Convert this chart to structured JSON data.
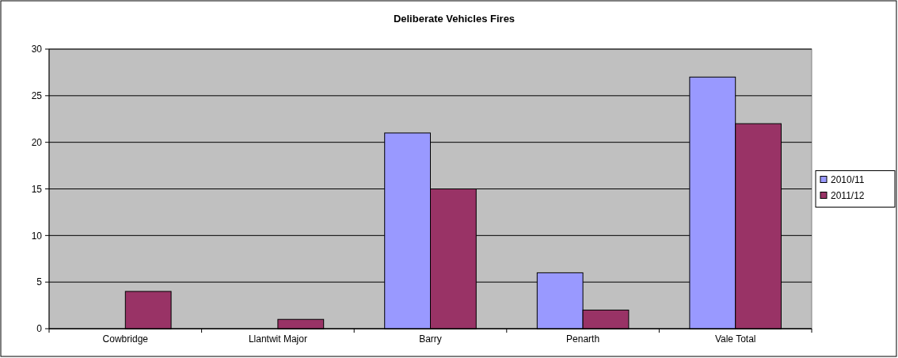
{
  "chart_data": {
    "type": "bar",
    "title": "Deliberate Vehicles Fires",
    "categories": [
      "Cowbridge",
      "Llantwit Major",
      "Barry",
      "Penarth",
      "Vale Total"
    ],
    "series": [
      {
        "name": "2010/11",
        "color": "#9999ff",
        "values": [
          0,
          0,
          21,
          6,
          27
        ]
      },
      {
        "name": "2011/12",
        "color": "#993366",
        "values": [
          4,
          1,
          15,
          2,
          22
        ]
      }
    ],
    "ylim": [
      0,
      30
    ],
    "yticks": [
      0,
      5,
      10,
      15,
      20,
      25,
      30
    ],
    "grid": "y",
    "legend": "right"
  }
}
